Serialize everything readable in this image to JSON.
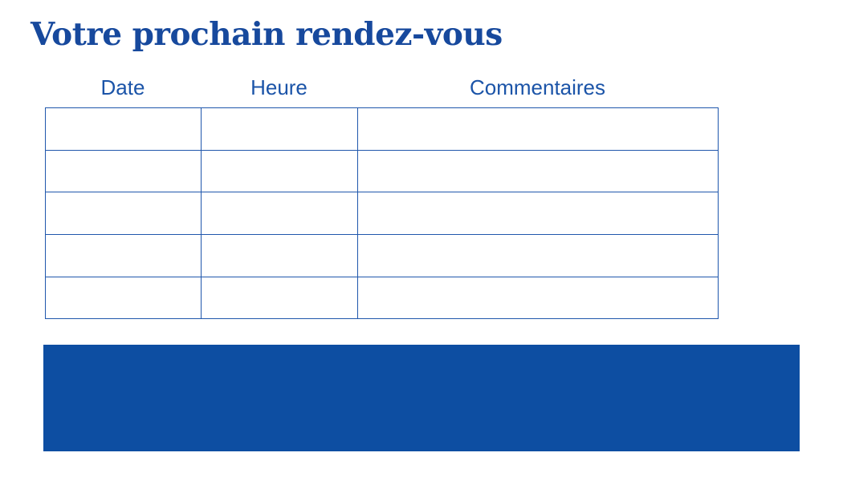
{
  "page": {
    "title": "Votre prochain rendez-vous"
  },
  "table": {
    "columns": [
      {
        "label": "Date"
      },
      {
        "label": "Heure"
      },
      {
        "label": "Commentaires"
      }
    ],
    "rows": [
      [
        "",
        "",
        ""
      ],
      [
        "",
        "",
        ""
      ],
      [
        "",
        "",
        ""
      ],
      [
        "",
        "",
        ""
      ],
      [
        "",
        "",
        ""
      ]
    ]
  },
  "colors": {
    "title_text": "#17499d",
    "header_text": "#1b54a8",
    "table_border": "#2057ac",
    "footer_block": "#0d4ea2",
    "page_bg": "#ffffff"
  }
}
